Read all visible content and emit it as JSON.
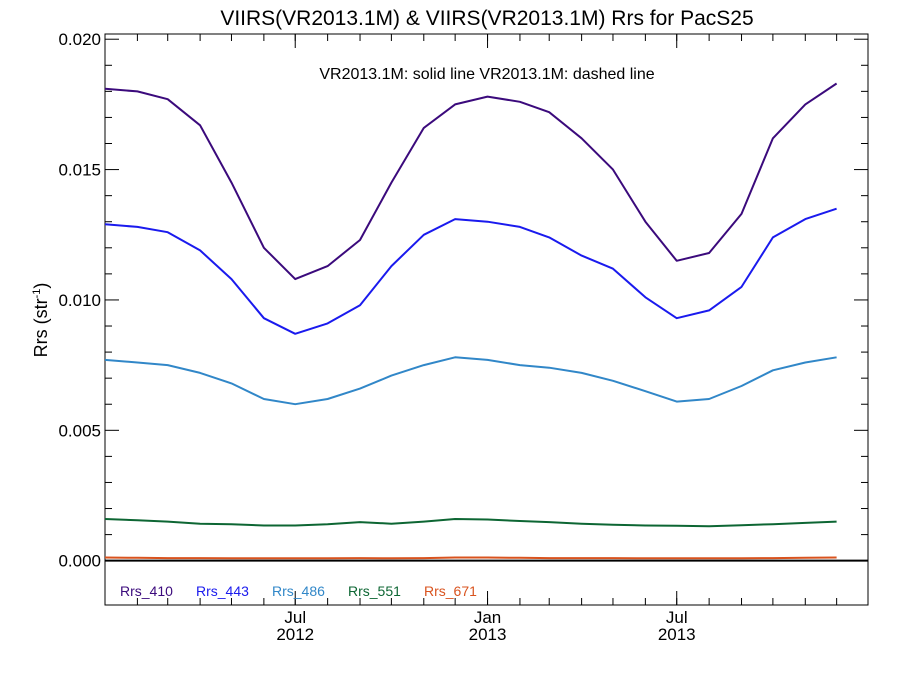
{
  "chart_data": {
    "type": "line",
    "title": "VIIRS(VR2013.1M) & VIIRS(VR2013.1M)  Rrs for PacS25",
    "annotation": "VR2013.1M: solid line   VR2013.1M: dashed line",
    "ylabel": "Rrs (str",
    "ylabel_sup": "-1",
    "ylabel_close": ")",
    "ylim": [
      -0.0017,
      0.0202
    ],
    "xlim": [
      "2012-01-01",
      "2013-12-31"
    ],
    "yticks": [
      "0.000",
      "0.005",
      "0.010",
      "0.015",
      "0.020"
    ],
    "xticks": [
      {
        "month": "Jul",
        "year": "2012",
        "date": "2012-07-01"
      },
      {
        "month": "Jan",
        "year": "2013",
        "date": "2013-01-01"
      },
      {
        "month": "Jul",
        "year": "2013",
        "date": "2013-07-01"
      }
    ],
    "x": [
      "2012-01-01",
      "2012-02-01",
      "2012-03-01",
      "2012-04-01",
      "2012-05-01",
      "2012-06-01",
      "2012-07-01",
      "2012-08-01",
      "2012-09-01",
      "2012-10-01",
      "2012-11-01",
      "2012-12-01",
      "2013-01-01",
      "2013-02-01",
      "2013-03-01",
      "2013-04-01",
      "2013-05-01",
      "2013-06-01",
      "2013-07-01",
      "2013-08-01",
      "2013-09-01",
      "2013-10-01",
      "2013-11-01",
      "2013-12-01"
    ],
    "series": [
      {
        "name": "Rrs_410",
        "color": "#3b0a7c",
        "values": [
          0.0181,
          0.018,
          0.0177,
          0.0167,
          0.0145,
          0.012,
          0.0108,
          0.0113,
          0.0123,
          0.0145,
          0.0166,
          0.0175,
          0.0178,
          0.0176,
          0.0172,
          0.0162,
          0.015,
          0.013,
          0.0115,
          0.0118,
          0.0133,
          0.0162,
          0.0175,
          0.0183
        ]
      },
      {
        "name": "Rrs_443",
        "color": "#1a1aee",
        "values": [
          0.0129,
          0.0128,
          0.0126,
          0.0119,
          0.0108,
          0.0093,
          0.0087,
          0.0091,
          0.0098,
          0.0113,
          0.0125,
          0.0131,
          0.013,
          0.0128,
          0.0124,
          0.0117,
          0.0112,
          0.0101,
          0.0093,
          0.0096,
          0.0105,
          0.0124,
          0.0131,
          0.0135
        ]
      },
      {
        "name": "Rrs_486",
        "color": "#3187c8",
        "values": [
          0.0077,
          0.0076,
          0.0075,
          0.0072,
          0.0068,
          0.0062,
          0.006,
          0.0062,
          0.0066,
          0.0071,
          0.0075,
          0.0078,
          0.0077,
          0.0075,
          0.0074,
          0.0072,
          0.0069,
          0.0065,
          0.0061,
          0.0062,
          0.0067,
          0.0073,
          0.0076,
          0.0078
        ]
      },
      {
        "name": "Rrs_551",
        "color": "#0d6633",
        "values": [
          0.0016,
          0.00155,
          0.0015,
          0.00142,
          0.0014,
          0.00135,
          0.00135,
          0.0014,
          0.00148,
          0.00142,
          0.0015,
          0.0016,
          0.00158,
          0.00152,
          0.00148,
          0.00142,
          0.00138,
          0.00135,
          0.00134,
          0.00132,
          0.00136,
          0.0014,
          0.00145,
          0.0015
        ]
      },
      {
        "name": "Rrs_671",
        "color": "#d9531e",
        "values": [
          0.00012,
          0.00011,
          0.0001,
          0.0001,
          9e-05,
          9e-05,
          9e-05,
          9e-05,
          0.0001,
          9e-05,
          0.0001,
          0.00012,
          0.00012,
          0.00011,
          0.0001,
          0.0001,
          0.0001,
          9e-05,
          9e-05,
          9e-05,
          9e-05,
          0.0001,
          0.00011,
          0.00012
        ]
      }
    ],
    "reference_line": {
      "y": 0.0,
      "color": "#000000"
    },
    "grid": false,
    "legend_placement": "bottom-left"
  }
}
